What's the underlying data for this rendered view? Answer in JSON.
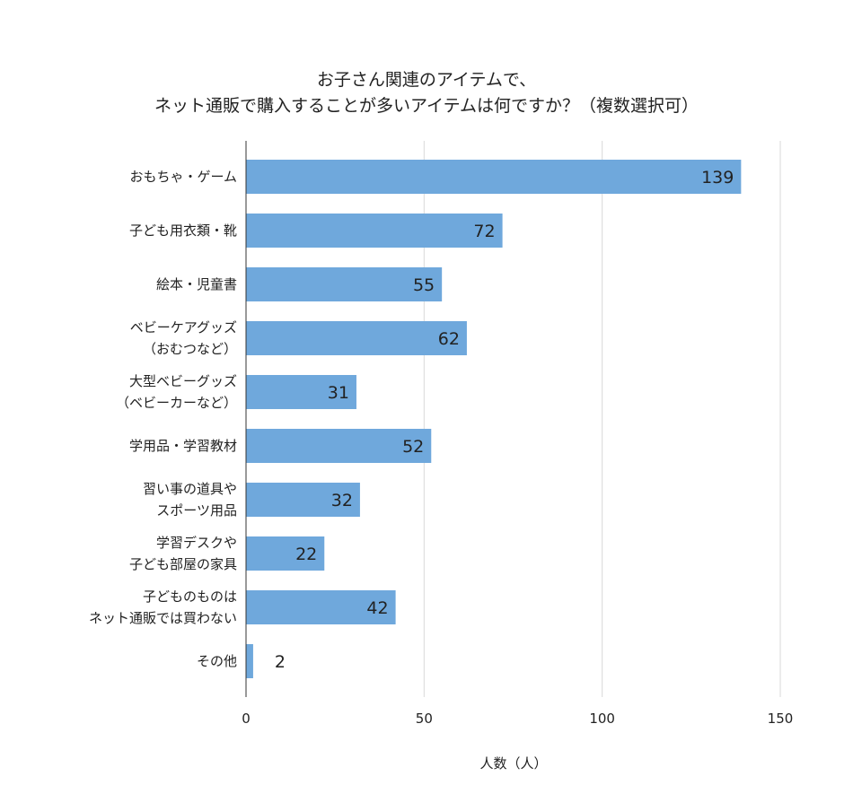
{
  "chart_data": {
    "type": "bar",
    "orientation": "horizontal",
    "title": [
      "お子さん関連のアイテムで、",
      "ネット通販で購入することが多いアイテムは何ですか？（複数選択可）"
    ],
    "xlabel": "人数（人）",
    "ylabel": "",
    "xlim": [
      0,
      150
    ],
    "xticks": [
      0,
      50,
      100,
      150
    ],
    "grid": true,
    "bar_color": "#6fa8dc",
    "categories": [
      [
        "おもちゃ・ゲーム"
      ],
      [
        "子ども用衣類・靴"
      ],
      [
        "絵本・児童書"
      ],
      [
        "ベビーケアグッズ",
        "（おむつなど）"
      ],
      [
        "大型ベビーグッズ",
        "（ベビーカーなど）"
      ],
      [
        "学用品・学習教材"
      ],
      [
        "習い事の道具や",
        "スポーツ用品"
      ],
      [
        "学習デスクや",
        "子ども部屋の家具"
      ],
      [
        "子どものものは",
        "ネット通販では買わない"
      ],
      [
        "その他"
      ]
    ],
    "values": [
      139,
      72,
      55,
      62,
      31,
      52,
      32,
      22,
      42,
      2
    ]
  }
}
